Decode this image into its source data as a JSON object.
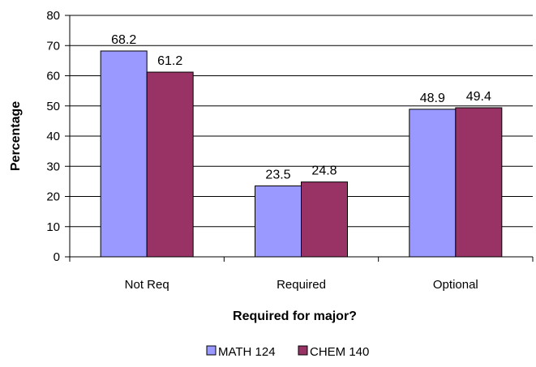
{
  "chart_data": {
    "type": "bar",
    "categories": [
      "Not Req",
      "Required",
      "Optional"
    ],
    "series": [
      {
        "name": "MATH 124",
        "values": [
          68.2,
          23.5,
          48.9
        ],
        "color": "#9999ff"
      },
      {
        "name": "CHEM 140",
        "values": [
          61.2,
          24.8,
          49.4
        ],
        "color": "#993366"
      }
    ],
    "xlabel": "Required for major?",
    "ylabel": "Percentage",
    "ylim": [
      0,
      80
    ],
    "yticks": [
      0,
      10,
      20,
      30,
      40,
      50,
      60,
      70,
      80
    ],
    "grid": true,
    "data_labels": true,
    "legend_position": "bottom"
  }
}
